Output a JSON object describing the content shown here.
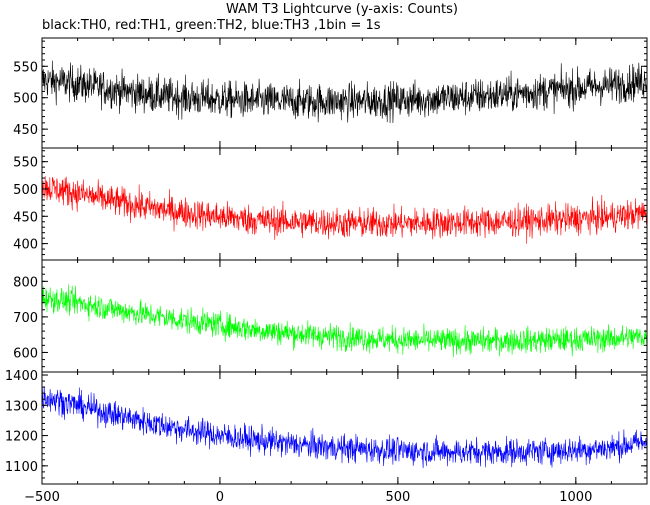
{
  "chart_data": {
    "type": "line",
    "title": "WAM T3 Lightcurve (y-axis: Counts)",
    "subtitle": "black:TH0, red:TH1, green:TH2, blue:TH3 ,1bin = 1s",
    "xlabel": "",
    "xlim": [
      -500,
      1200
    ],
    "x_ticks": [
      -500,
      0,
      500,
      1000
    ],
    "x_tick_labels": [
      "−500",
      "0",
      "500",
      "1000"
    ],
    "grid": false,
    "legend": "none",
    "bin_seconds": 1,
    "panels": [
      {
        "name": "TH0",
        "color": "#000000",
        "ylim": [
          420,
          595
        ],
        "y_ticks": [
          450,
          500,
          550
        ],
        "trend": {
          "x": [
            -500,
            -400,
            -300,
            -200,
            -100,
            0,
            100,
            200,
            300,
            400,
            500,
            600,
            700,
            800,
            900,
            1000,
            1100,
            1200
          ],
          "y": [
            528,
            522,
            513,
            505,
            500,
            497,
            495,
            494,
            494,
            494,
            496,
            498,
            501,
            505,
            510,
            515,
            520,
            527
          ]
        },
        "noise_amplitude": 26
      },
      {
        "name": "TH1",
        "color": "#ff0000",
        "ylim": [
          370,
          575
        ],
        "y_ticks": [
          400,
          450,
          500,
          550
        ],
        "trend": {
          "x": [
            -500,
            -400,
            -300,
            -200,
            -100,
            0,
            100,
            200,
            300,
            400,
            500,
            600,
            700,
            800,
            900,
            1000,
            1100,
            1200
          ],
          "y": [
            505,
            492,
            478,
            466,
            457,
            449,
            443,
            440,
            438,
            437,
            437,
            438,
            439,
            440,
            442,
            445,
            449,
            456
          ]
        },
        "noise_amplitude": 25
      },
      {
        "name": "TH2",
        "color": "#00ff00",
        "ylim": [
          545,
          860
        ],
        "y_ticks": [
          600,
          700,
          800
        ],
        "trend": {
          "x": [
            -500,
            -400,
            -300,
            -200,
            -100,
            0,
            100,
            200,
            300,
            400,
            500,
            600,
            700,
            800,
            900,
            1000,
            1100,
            1200
          ],
          "y": [
            755,
            740,
            722,
            705,
            690,
            677,
            664,
            654,
            646,
            640,
            635,
            633,
            632,
            633,
            634,
            636,
            639,
            645
          ]
        },
        "noise_amplitude": 32
      },
      {
        "name": "TH3",
        "color": "#0000ff",
        "ylim": [
          1040,
          1410
        ],
        "y_ticks": [
          1100,
          1200,
          1300,
          1400
        ],
        "trend": {
          "x": [
            -500,
            -400,
            -300,
            -200,
            -100,
            0,
            100,
            200,
            300,
            400,
            500,
            600,
            700,
            800,
            900,
            1000,
            1100,
            1200
          ],
          "y": [
            1330,
            1300,
            1270,
            1243,
            1220,
            1200,
            1185,
            1172,
            1162,
            1155,
            1150,
            1147,
            1146,
            1146,
            1148,
            1152,
            1160,
            1180
          ]
        },
        "noise_amplitude": 40
      }
    ]
  }
}
